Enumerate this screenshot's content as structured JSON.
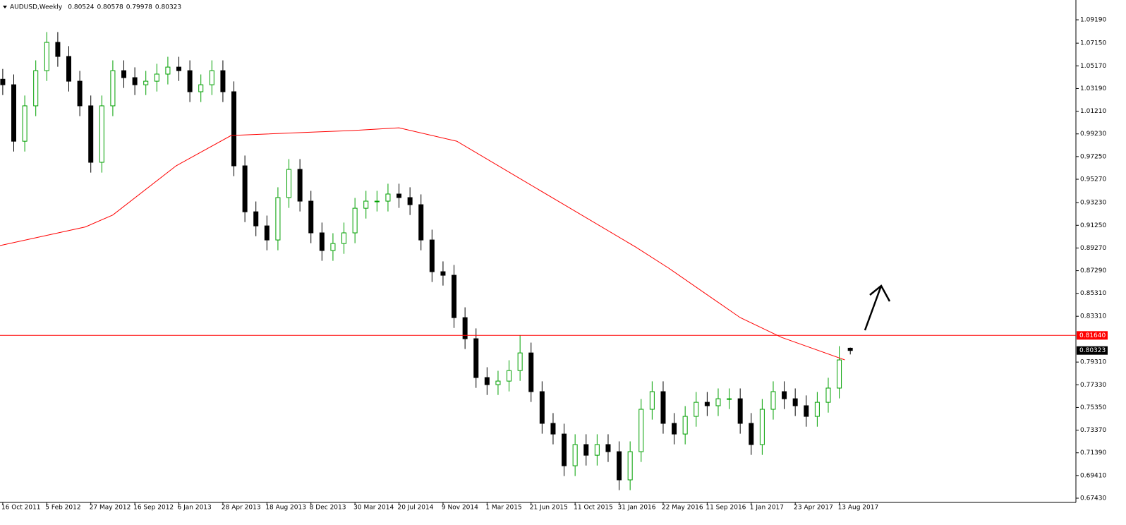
{
  "chart_data": {
    "type": "candlestick",
    "title": "AUDUSD,Weekly",
    "x": [
      0,
      4,
      8,
      12,
      16,
      20,
      24,
      28,
      32,
      36,
      40,
      44,
      48,
      52,
      56,
      60,
      64,
      68,
      72,
      76,
      80,
      84,
      88,
      92,
      96,
      100,
      104,
      108,
      112,
      116,
      120,
      124,
      128,
      132,
      136,
      140,
      144,
      148,
      152,
      156,
      160,
      164,
      168,
      172,
      176,
      180,
      184,
      188,
      192,
      196,
      200,
      204,
      208,
      212,
      216,
      220,
      224,
      228,
      232,
      236,
      240,
      244,
      248,
      252,
      256,
      260,
      264,
      268,
      272,
      276,
      280,
      284,
      288,
      292,
      296,
      300,
      304,
      308
    ],
    "open": [
      1.04,
      1.0352,
      0.9859,
      1.0168,
      1.0475,
      1.0722,
      1.0599,
      1.0383,
      1.0168,
      0.9675,
      1.0168,
      1.0475,
      1.0414,
      1.0352,
      1.0383,
      1.0445,
      1.0506,
      1.0475,
      1.0291,
      1.0352,
      1.0475,
      1.0291,
      0.9644,
      0.9243,
      0.912,
      0.8997,
      0.9367,
      0.9613,
      0.9336,
      0.9059,
      0.8905,
      0.8966,
      0.9059,
      0.9274,
      0.9336,
      0.9336,
      0.9398,
      0.9367,
      0.9305,
      0.8997,
      0.872,
      0.8689,
      0.8319,
      0.8135,
      0.7796,
      0.7734,
      0.7765,
      0.7857,
      0.8011,
      0.7673,
      0.7396,
      0.7303,
      0.7026,
      0.7211,
      0.7118,
      0.7211,
      0.7149,
      0.6903,
      0.7149,
      0.7519,
      0.7673,
      0.7396,
      0.7303,
      0.7457,
      0.758,
      0.755,
      0.7611,
      0.7611,
      0.7396,
      0.7211,
      0.7519,
      0.7673,
      0.7611,
      0.755,
      0.7457,
      0.758,
      0.7704,
      0.80524
    ],
    "high": [
      1.049,
      1.0442,
      1.0258,
      1.0565,
      1.0812,
      1.0812,
      1.0689,
      1.0473,
      1.0258,
      1.0258,
      1.0565,
      1.0565,
      1.0504,
      1.0473,
      1.0535,
      1.0596,
      1.0596,
      1.0565,
      1.0442,
      1.0565,
      1.0565,
      1.0381,
      0.9734,
      0.9333,
      0.921,
      0.9457,
      0.9703,
      0.9703,
      0.9426,
      0.9149,
      0.9056,
      0.9149,
      0.9364,
      0.9426,
      0.9426,
      0.9488,
      0.9488,
      0.9457,
      0.9395,
      0.9087,
      0.881,
      0.8779,
      0.8409,
      0.8225,
      0.7886,
      0.7855,
      0.7947,
      0.8165,
      0.8101,
      0.7763,
      0.7486,
      0.7393,
      0.7301,
      0.7301,
      0.7301,
      0.7301,
      0.7239,
      0.7239,
      0.7609,
      0.7763,
      0.7763,
      0.7486,
      0.7547,
      0.767,
      0.767,
      0.7701,
      0.7701,
      0.7701,
      0.7486,
      0.7609,
      0.7763,
      0.7763,
      0.7701,
      0.764,
      0.767,
      0.7794,
      0.807,
      0.80578
    ],
    "low": [
      1.0262,
      0.9769,
      0.9769,
      1.0078,
      1.0385,
      1.0509,
      1.0293,
      1.0078,
      0.9585,
      0.9585,
      1.0078,
      1.0324,
      1.0262,
      1.0262,
      1.0293,
      1.0355,
      1.0385,
      1.0201,
      1.0201,
      1.0262,
      1.0201,
      0.9554,
      0.9153,
      0.903,
      0.8907,
      0.8907,
      0.9277,
      0.9246,
      0.8969,
      0.8815,
      0.8815,
      0.8876,
      0.8969,
      0.9184,
      0.9246,
      0.9246,
      0.9277,
      0.9215,
      0.8907,
      0.863,
      0.8599,
      0.8229,
      0.8045,
      0.7706,
      0.7644,
      0.7644,
      0.7675,
      0.7767,
      0.7583,
      0.7306,
      0.7213,
      0.6936,
      0.6936,
      0.7028,
      0.7028,
      0.7059,
      0.6813,
      0.6813,
      0.7059,
      0.7429,
      0.7306,
      0.7213,
      0.7213,
      0.7367,
      0.746,
      0.746,
      0.7521,
      0.7306,
      0.7121,
      0.7121,
      0.7429,
      0.7521,
      0.746,
      0.7367,
      0.7367,
      0.749,
      0.7614,
      0.79978
    ],
    "close": [
      1.0352,
      0.9859,
      1.0168,
      1.0475,
      1.0722,
      1.0599,
      1.0383,
      1.0168,
      0.9675,
      1.0168,
      1.0475,
      1.0414,
      1.0352,
      1.0383,
      1.0445,
      1.0506,
      1.0475,
      1.0291,
      1.0352,
      1.0475,
      1.0291,
      0.9644,
      0.9243,
      0.912,
      0.8997,
      0.9367,
      0.9613,
      0.9336,
      0.9059,
      0.8905,
      0.8966,
      0.9059,
      0.9274,
      0.9336,
      0.9336,
      0.9398,
      0.9367,
      0.9305,
      0.8997,
      0.872,
      0.8689,
      0.8319,
      0.8135,
      0.7796,
      0.7734,
      0.7765,
      0.7857,
      0.8011,
      0.7673,
      0.7396,
      0.7303,
      0.7026,
      0.7211,
      0.7118,
      0.7211,
      0.7149,
      0.6903,
      0.7149,
      0.7519,
      0.7673,
      0.7396,
      0.7303,
      0.7457,
      0.758,
      0.755,
      0.7611,
      0.7611,
      0.7396,
      0.7211,
      0.7519,
      0.7673,
      0.7611,
      0.755,
      0.7457,
      0.758,
      0.7704,
      0.795,
      0.80323
    ],
    "up_color": "#00a000",
    "down_color": "#000000",
    "moving_average": {
      "color": "#ff0000",
      "x": [
        -1,
        30,
        40,
        63,
        83,
        114,
        127,
        144,
        165,
        204,
        230,
        242,
        268,
        283,
        306
      ],
      "values": [
        0.8948,
        0.9111,
        0.9215,
        0.9644,
        0.9909,
        0.994,
        0.9952,
        0.9976,
        0.9859,
        0.9305,
        0.8935,
        0.8751,
        0.8319,
        0.8147,
        0.795
      ]
    },
    "hline": {
      "value": 0.8164,
      "label": "0.81640",
      "color": "#ff0000"
    },
    "xlim": [
      -1,
      390
    ],
    "ylim": [
      0.6706,
      1.1061
    ],
    "xticks": [
      {
        "value": 0,
        "label": "16 Oct 2011"
      },
      {
        "value": 16,
        "label": "5 Feb 2012"
      },
      {
        "value": 32,
        "label": "27 May 2012"
      },
      {
        "value": 48,
        "label": "16 Sep 2012"
      },
      {
        "value": 64,
        "label": "6 Jan 2013"
      },
      {
        "value": 80,
        "label": "28 Apr 2013"
      },
      {
        "value": 96,
        "label": "18 Aug 2013"
      },
      {
        "value": 112,
        "label": "8 Dec 2013"
      },
      {
        "value": 128,
        "label": "30 Mar 2014"
      },
      {
        "value": 144,
        "label": "20 Jul 2014"
      },
      {
        "value": 160,
        "label": "9 Nov 2014"
      },
      {
        "value": 176,
        "label": "1 Mar 2015"
      },
      {
        "value": 192,
        "label": "21 Jun 2015"
      },
      {
        "value": 208,
        "label": "11 Oct 2015"
      },
      {
        "value": 224,
        "label": "31 Jan 2016"
      },
      {
        "value": 240,
        "label": "22 May 2016"
      },
      {
        "value": 256,
        "label": "11 Sep 2016"
      },
      {
        "value": 272,
        "label": "1 Jan 2017"
      },
      {
        "value": 288,
        "label": "23 Apr 2017"
      },
      {
        "value": 304,
        "label": "13 Aug 2017"
      }
    ],
    "yticks": [
      {
        "value": 0.6743,
        "label": "0.67430"
      },
      {
        "value": 0.6941,
        "label": "0.69410"
      },
      {
        "value": 0.7139,
        "label": "0.71390"
      },
      {
        "value": 0.7337,
        "label": "0.73370"
      },
      {
        "value": 0.7535,
        "label": "0.75350"
      },
      {
        "value": 0.7733,
        "label": "0.77330"
      },
      {
        "value": 0.7931,
        "label": "0.79310"
      },
      {
        "value": 0.8331,
        "label": "0.83310"
      },
      {
        "value": 0.8531,
        "label": "0.85310"
      },
      {
        "value": 0.8729,
        "label": "0.87290"
      },
      {
        "value": 0.8927,
        "label": "0.89270"
      },
      {
        "value": 0.9125,
        "label": "0.91250"
      },
      {
        "value": 0.9323,
        "label": "0.93230"
      },
      {
        "value": 0.9527,
        "label": "0.95270"
      },
      {
        "value": 0.9725,
        "label": "0.97250"
      },
      {
        "value": 0.9923,
        "label": "0.99230"
      },
      {
        "value": 1.0121,
        "label": "1.01210"
      },
      {
        "value": 1.0319,
        "label": "1.03190"
      },
      {
        "value": 1.0517,
        "label": "1.05170"
      },
      {
        "value": 1.0715,
        "label": "1.07150"
      },
      {
        "value": 1.0919,
        "label": "1.09190"
      }
    ]
  }
}
